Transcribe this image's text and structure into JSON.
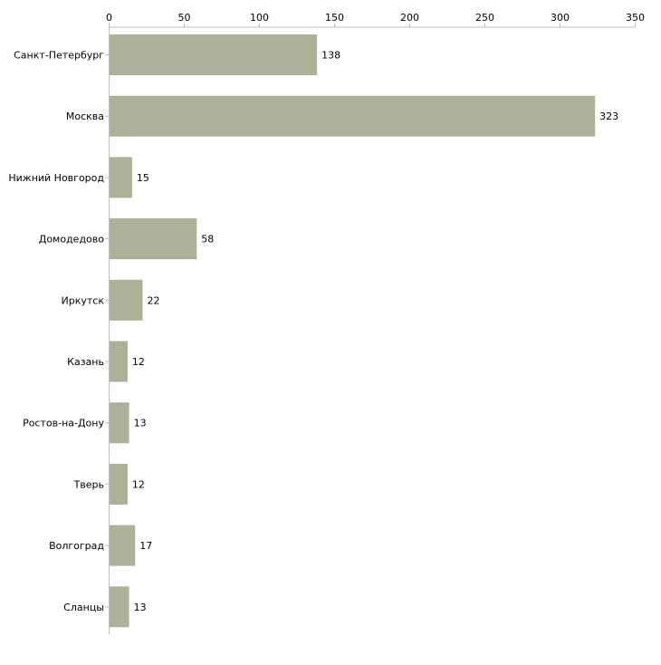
{
  "chart_data": {
    "type": "bar",
    "orientation": "horizontal",
    "title": "",
    "xlabel": "",
    "ylabel": "",
    "xlim": [
      0,
      350
    ],
    "x_ticks": [
      0,
      50,
      100,
      150,
      200,
      250,
      300,
      350
    ],
    "x_tick_labels": [
      "0",
      "50",
      "100",
      "150",
      "200",
      "250",
      "300",
      "350"
    ],
    "x_axis_position": "top",
    "grid": false,
    "legend": "none",
    "categories": [
      "Санкт-Петербург",
      "Москва",
      "Нижний Новгород",
      "Домодедово",
      "Иркутск",
      "Казань",
      "Ростов-на-Дону",
      "Тверь",
      "Волгоград",
      "Сланцы"
    ],
    "values": [
      138,
      323,
      15,
      58,
      22,
      12,
      13,
      12,
      17,
      13
    ],
    "value_labels": [
      "138",
      "323",
      "15",
      "58",
      "22",
      "12",
      "13",
      "12",
      "17",
      "13"
    ],
    "colors": {
      "bar": "#acb197",
      "axis": "#c0c0c0",
      "text": "#000000"
    }
  }
}
